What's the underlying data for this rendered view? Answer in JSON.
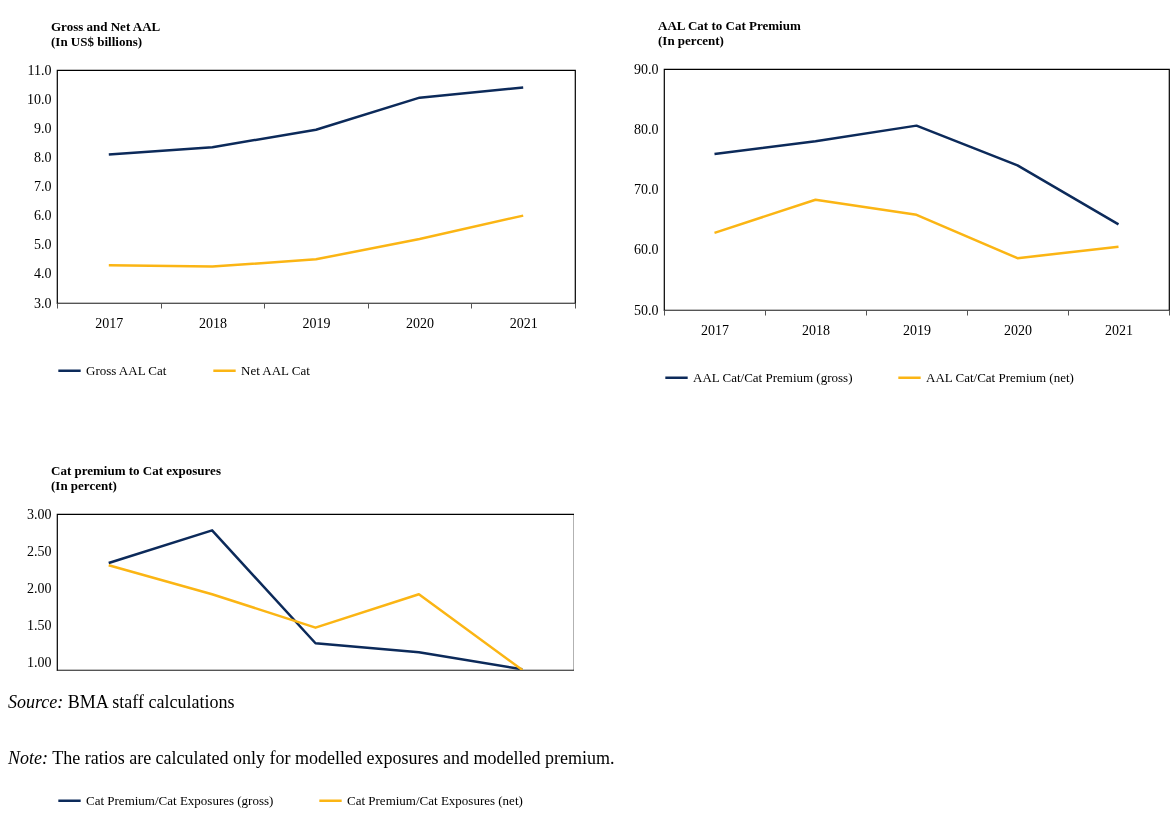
{
  "chart_data": [
    {
      "type": "line",
      "title": "Gross and Net AAL",
      "subtitle": "(In US$ billions)",
      "categories": [
        "2017",
        "2018",
        "2019",
        "2020",
        "2021"
      ],
      "series": [
        {
          "name": "Gross AAL Cat",
          "color": "#0c2a5a",
          "values": [
            8.1,
            8.35,
            8.95,
            10.05,
            10.4
          ]
        },
        {
          "name": "Net AAL Cat",
          "color": "#fbb514",
          "values": [
            4.3,
            4.25,
            4.5,
            5.2,
            6.0
          ]
        }
      ],
      "ylim": [
        3,
        11
      ],
      "yticks": [
        {
          "value": 3,
          "label": "3.0"
        },
        {
          "value": 4,
          "label": "4.0"
        },
        {
          "value": 5,
          "label": "5.0"
        },
        {
          "value": 6,
          "label": "6.0"
        },
        {
          "value": 7,
          "label": "7.0"
        },
        {
          "value": 8,
          "label": "8.0"
        },
        {
          "value": 9,
          "label": "9.0"
        },
        {
          "value": 10,
          "label": "10.0"
        },
        {
          "value": 11,
          "label": "11.0"
        }
      ],
      "grid": false,
      "legend": "bottom"
    },
    {
      "type": "line",
      "title": "AAL Cat to Cat Premium",
      "subtitle": "(In percent)",
      "categories": [
        "2017",
        "2018",
        "2019",
        "2020",
        "2021"
      ],
      "series": [
        {
          "name": "AAL Cat/Cat Premium (gross)",
          "color": "#0c2a5a",
          "values": [
            75.9,
            78.0,
            80.6,
            74.0,
            64.2
          ]
        },
        {
          "name": "AAL Cat/Cat Premium (net)",
          "color": "#fbb514",
          "values": [
            62.8,
            68.3,
            65.8,
            58.6,
            60.5
          ]
        }
      ],
      "ylim": [
        50,
        90
      ],
      "yticks": [
        {
          "value": 50,
          "label": "50.0"
        },
        {
          "value": 60,
          "label": "60.0"
        },
        {
          "value": 70,
          "label": "70.0"
        },
        {
          "value": 80,
          "label": "80.0"
        },
        {
          "value": 90,
          "label": "90.0"
        }
      ],
      "grid": false,
      "legend": "bottom"
    },
    {
      "type": "line",
      "title": "Cat premium to Cat exposures",
      "subtitle": "(In percent)",
      "categories": [
        null,
        null,
        null,
        null,
        null
      ],
      "series": [
        {
          "name": "Cat Premium/Cat Exposures (gross)",
          "color": "#0c2a5a",
          "values": [
            2.34,
            2.78,
            1.26,
            1.14,
            0.91
          ]
        },
        {
          "name": "Cat Premium/Cat Exposures (net)",
          "color": "#fbb514",
          "values": [
            2.31,
            1.92,
            1.47,
            1.92,
            0.9
          ]
        }
      ],
      "ylim": [
        0.9,
        3.0
      ],
      "yticks": [
        {
          "value": 1,
          "label": "1.00"
        },
        {
          "value": 1.5,
          "label": "1.50"
        },
        {
          "value": 2,
          "label": "2.00"
        },
        {
          "value": 2.5,
          "label": "2.50"
        },
        {
          "value": 3,
          "label": "3.00"
        }
      ],
      "tick_labels": "y",
      "grid": false,
      "legend": "bottom",
      "annotations": [
        "Source: BMA staff calculations",
        "Note: The ratios are calculated only for modelled exposures and modelled premium."
      ]
    }
  ]
}
